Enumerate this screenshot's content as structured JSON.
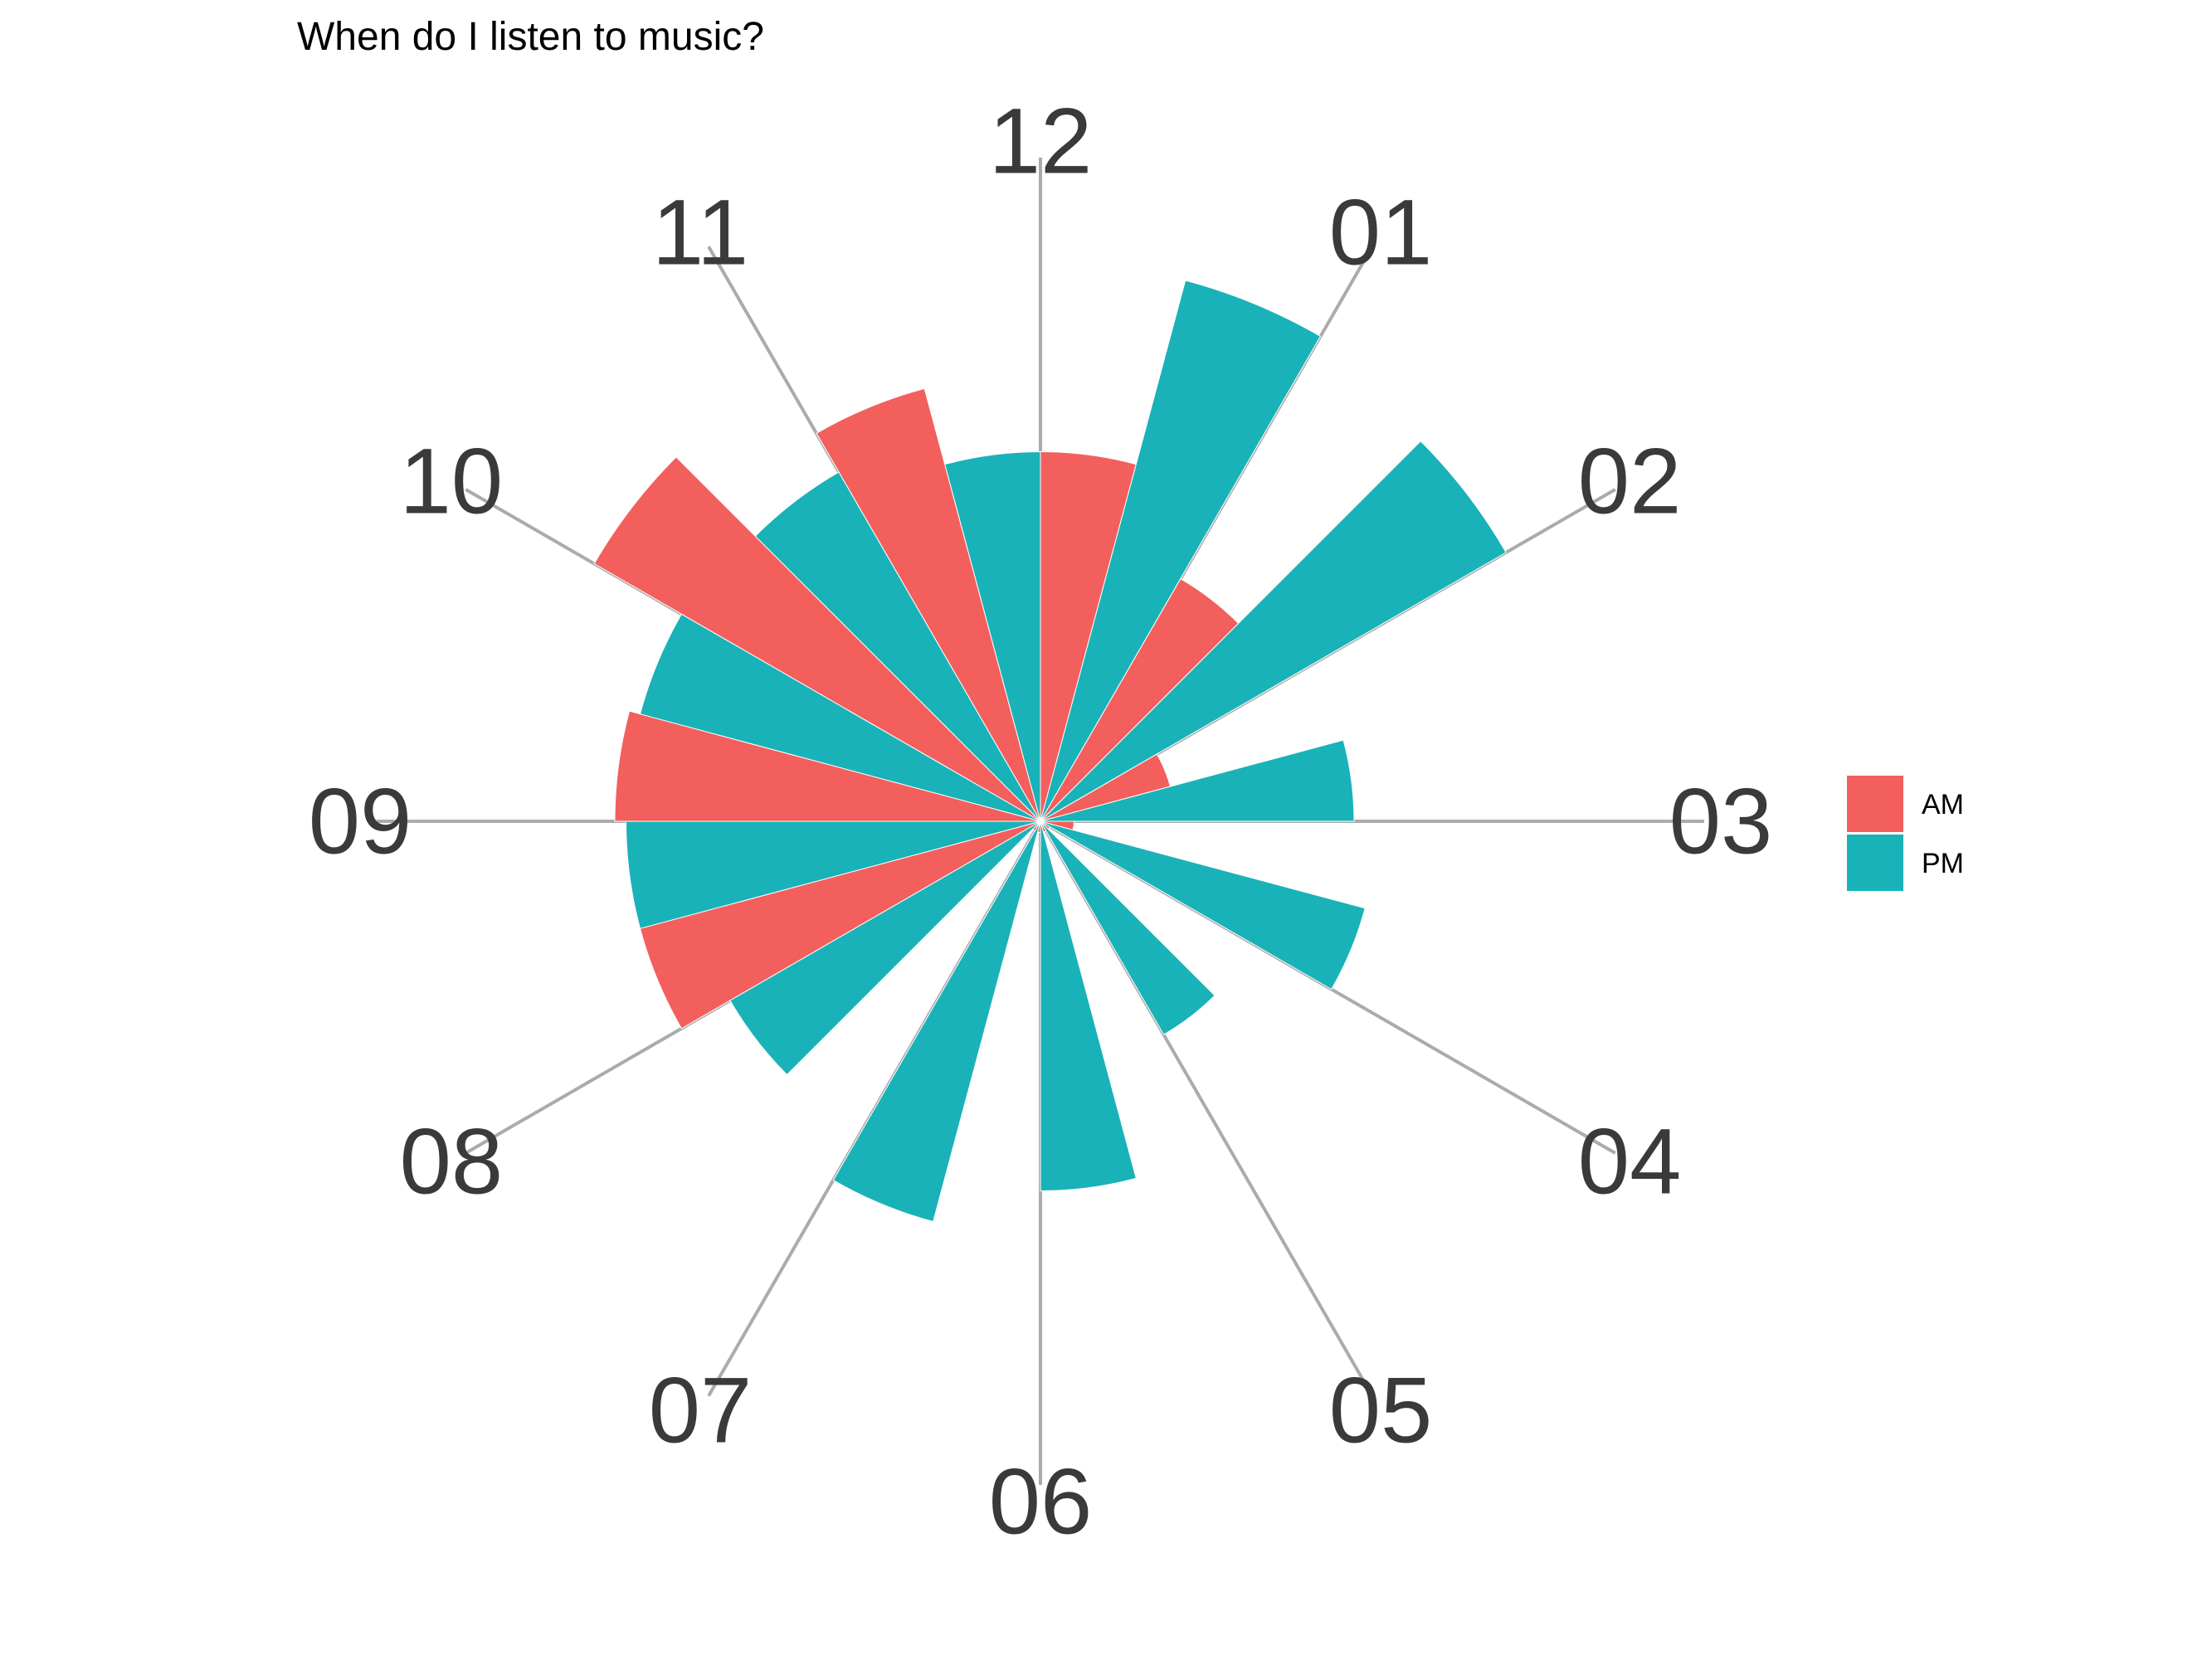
{
  "chart_data": {
    "type": "bar",
    "coord": "polar",
    "title": "When do I listen to music?",
    "categories": [
      "12",
      "01",
      "02",
      "03",
      "04",
      "05",
      "06",
      "07",
      "08",
      "09",
      "10",
      "11"
    ],
    "series": [
      {
        "name": "AM",
        "color": "#F25F5C",
        "values": [
          33,
          25,
          12,
          3,
          1,
          1,
          1,
          1,
          37,
          38,
          46,
          40
        ]
      },
      {
        "name": "PM",
        "color": "#19B2B8",
        "values": [
          50,
          48,
          28,
          30,
          22,
          33,
          37,
          32,
          37,
          37,
          36,
          33
        ]
      }
    ],
    "radial_max": 50,
    "legend_position": "right",
    "grid": false
  }
}
